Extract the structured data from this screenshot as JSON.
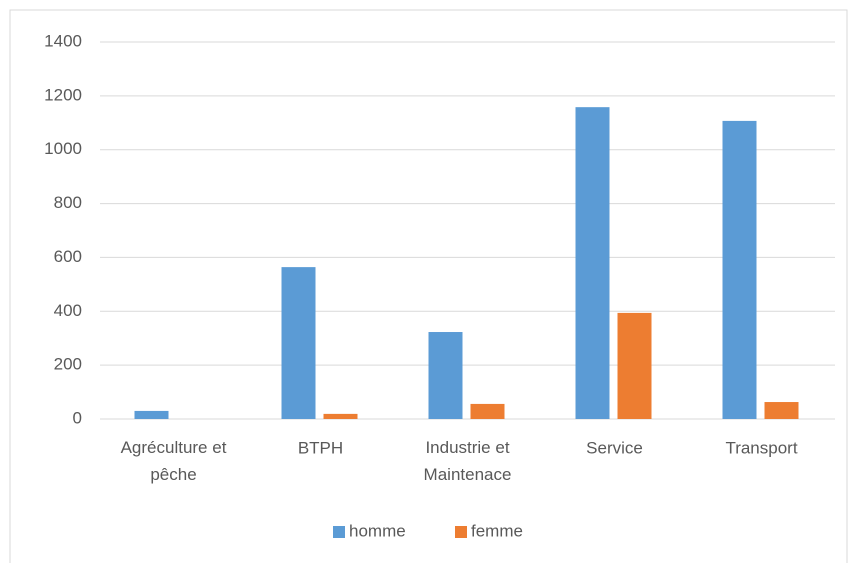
{
  "chart_data": {
    "type": "bar",
    "categories": [
      "Agréculture et pêche",
      "BTPH",
      "Industrie et Maintenace",
      "Service",
      "Transport"
    ],
    "series": [
      {
        "name": "homme",
        "color": "#5b9bd5",
        "values": [
          30,
          564,
          323,
          1158,
          1107
        ]
      },
      {
        "name": "femme",
        "color": "#ed7d31",
        "values": [
          0,
          19,
          56,
          394,
          63
        ]
      }
    ],
    "ylim": [
      0,
      1400
    ],
    "yticks": [
      0,
      200,
      400,
      600,
      800,
      1000,
      1200,
      1400
    ],
    "grid": true,
    "legend": "bottom"
  }
}
